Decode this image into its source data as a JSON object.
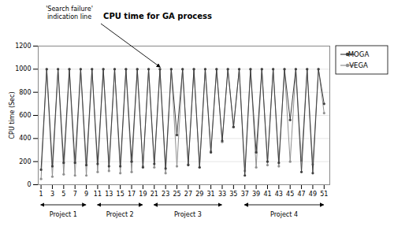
{
  "chart_data": {
    "type": "line",
    "title": "CPU time for GA process",
    "ylabel": "CPU time (Sec)",
    "x": [
      1,
      2,
      3,
      4,
      5,
      6,
      7,
      8,
      9,
      10,
      11,
      12,
      13,
      14,
      15,
      16,
      17,
      18,
      19,
      20,
      21,
      22,
      23,
      24,
      25,
      26,
      27,
      28,
      29,
      30,
      31,
      32,
      33,
      34,
      35,
      36,
      37,
      38,
      39,
      40,
      41,
      42,
      43,
      44,
      45,
      46,
      47,
      48,
      49,
      50,
      51
    ],
    "series": [
      {
        "name": "MOGA",
        "color": "#404040",
        "values": [
          130,
          1000,
          160,
          1000,
          190,
          1000,
          190,
          1000,
          170,
          1000,
          180,
          1000,
          160,
          1000,
          160,
          1000,
          200,
          1000,
          150,
          1000,
          180,
          1000,
          140,
          1000,
          430,
          1000,
          170,
          1000,
          150,
          1000,
          280,
          1000,
          380,
          1000,
          500,
          1000,
          80,
          1000,
          280,
          1000,
          200,
          1000,
          190,
          1000,
          560,
          1000,
          110,
          1000,
          100,
          1000,
          700
        ]
      },
      {
        "name": "VEGA",
        "color": "#909090",
        "values": [
          50,
          1000,
          70,
          1000,
          90,
          1000,
          80,
          1000,
          80,
          1000,
          110,
          1000,
          120,
          1000,
          100,
          1000,
          110,
          1000,
          160,
          1000,
          150,
          1000,
          100,
          1000,
          160,
          1000,
          175,
          1000,
          150,
          1000,
          290,
          1000,
          370,
          1000,
          500,
          1000,
          120,
          1000,
          150,
          1000,
          170,
          1000,
          160,
          1000,
          200,
          1000,
          210,
          1000,
          175,
          1000,
          620
        ]
      }
    ],
    "xlim": [
      0.5,
      52
    ],
    "xticks": [
      1,
      3,
      5,
      7,
      9,
      11,
      13,
      15,
      17,
      19,
      21,
      23,
      25,
      27,
      29,
      31,
      33,
      35,
      37,
      39,
      41,
      43,
      45,
      47,
      49,
      51
    ],
    "ylim": [
      0,
      1200
    ],
    "yticks": [
      0,
      200,
      400,
      600,
      800,
      1000,
      1200
    ],
    "grid": true,
    "legend": "right",
    "marker": "circle",
    "annotations": [
      {
        "text": "'Search failure'\nindication line",
        "y": 1000
      }
    ],
    "projects": [
      {
        "label": "Project 1",
        "range": [
          1,
          9
        ]
      },
      {
        "label": "Project 2",
        "range": [
          11,
          19
        ]
      },
      {
        "label": "Project 3",
        "range": [
          21,
          33
        ]
      },
      {
        "label": "Project 4",
        "range": [
          37,
          51
        ]
      }
    ]
  }
}
